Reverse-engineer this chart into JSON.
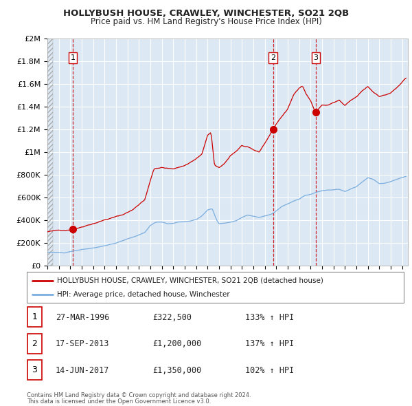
{
  "title": "HOLLYBUSH HOUSE, CRAWLEY, WINCHESTER, SO21 2QB",
  "subtitle": "Price paid vs. HM Land Registry's House Price Index (HPI)",
  "legend_red": "HOLLYBUSH HOUSE, CRAWLEY, WINCHESTER, SO21 2QB (detached house)",
  "legend_blue": "HPI: Average price, detached house, Winchester",
  "footer1": "Contains HM Land Registry data © Crown copyright and database right 2024.",
  "footer2": "This data is licensed under the Open Government Licence v3.0.",
  "sales": [
    {
      "label": "1",
      "date": "27-MAR-1996",
      "price": "£322,500",
      "hpi_pct": "133% ↑ HPI"
    },
    {
      "label": "2",
      "date": "17-SEP-2013",
      "price": "£1,200,000",
      "hpi_pct": "137% ↑ HPI"
    },
    {
      "label": "3",
      "date": "14-JUN-2017",
      "price": "£1,350,000",
      "hpi_pct": "102% ↑ HPI"
    }
  ],
  "sale_dates_decimal": [
    1996.23,
    2013.71,
    2017.45
  ],
  "sale_prices": [
    322500,
    1200000,
    1350000
  ],
  "red_color": "#cc0000",
  "blue_color": "#7aadde",
  "background_color": "#dce9f5",
  "grid_color": "#ffffff",
  "ylim": [
    0,
    2000000
  ],
  "xlim_start": 1994.0,
  "xlim_end": 2025.5,
  "yticks": [
    0,
    200000,
    400000,
    600000,
    800000,
    1000000,
    1200000,
    1400000,
    1600000,
    1800000,
    2000000
  ],
  "ytick_labels": [
    "£0",
    "£200K",
    "£400K",
    "£600K",
    "£800K",
    "£1M",
    "£1.2M",
    "£1.4M",
    "£1.6M",
    "£1.8M",
    "£2M"
  ],
  "xtick_years": [
    1994,
    1995,
    1996,
    1997,
    1998,
    1999,
    2000,
    2001,
    2002,
    2003,
    2004,
    2005,
    2006,
    2007,
    2008,
    2009,
    2010,
    2011,
    2012,
    2013,
    2014,
    2015,
    2016,
    2017,
    2018,
    2019,
    2020,
    2021,
    2022,
    2023,
    2024,
    2025
  ],
  "red_anchors": [
    [
      1994.0,
      300000
    ],
    [
      1995.0,
      310000
    ],
    [
      1996.23,
      322500
    ],
    [
      1997.5,
      370000
    ],
    [
      1999.0,
      420000
    ],
    [
      2000.5,
      460000
    ],
    [
      2001.5,
      510000
    ],
    [
      2002.5,
      600000
    ],
    [
      2003.3,
      870000
    ],
    [
      2004.0,
      880000
    ],
    [
      2004.5,
      870000
    ],
    [
      2005.0,
      870000
    ],
    [
      2006.0,
      900000
    ],
    [
      2007.0,
      960000
    ],
    [
      2007.5,
      1000000
    ],
    [
      2008.0,
      1160000
    ],
    [
      2008.3,
      1190000
    ],
    [
      2008.6,
      900000
    ],
    [
      2009.0,
      870000
    ],
    [
      2009.5,
      910000
    ],
    [
      2010.0,
      980000
    ],
    [
      2010.5,
      1020000
    ],
    [
      2011.0,
      1070000
    ],
    [
      2011.5,
      1050000
    ],
    [
      2012.0,
      1020000
    ],
    [
      2012.5,
      1000000
    ],
    [
      2013.0,
      1080000
    ],
    [
      2013.71,
      1200000
    ],
    [
      2014.0,
      1250000
    ],
    [
      2014.5,
      1320000
    ],
    [
      2015.0,
      1380000
    ],
    [
      2015.5,
      1500000
    ],
    [
      2016.0,
      1570000
    ],
    [
      2016.3,
      1590000
    ],
    [
      2016.6,
      1520000
    ],
    [
      2017.0,
      1460000
    ],
    [
      2017.45,
      1350000
    ],
    [
      2017.8,
      1400000
    ],
    [
      2018.0,
      1420000
    ],
    [
      2018.5,
      1420000
    ],
    [
      2019.0,
      1440000
    ],
    [
      2019.5,
      1460000
    ],
    [
      2020.0,
      1410000
    ],
    [
      2020.5,
      1450000
    ],
    [
      2021.0,
      1480000
    ],
    [
      2021.5,
      1530000
    ],
    [
      2022.0,
      1570000
    ],
    [
      2022.5,
      1520000
    ],
    [
      2023.0,
      1490000
    ],
    [
      2023.5,
      1500000
    ],
    [
      2024.0,
      1520000
    ],
    [
      2024.5,
      1560000
    ],
    [
      2025.3,
      1640000
    ]
  ],
  "blue_anchors": [
    [
      1994.0,
      120000
    ],
    [
      1995.0,
      120000
    ],
    [
      1995.5,
      115000
    ],
    [
      1996.0,
      130000
    ],
    [
      1997.0,
      150000
    ],
    [
      1998.0,
      165000
    ],
    [
      1999.0,
      185000
    ],
    [
      2000.0,
      205000
    ],
    [
      2001.0,
      240000
    ],
    [
      2002.0,
      275000
    ],
    [
      2002.5,
      295000
    ],
    [
      2003.0,
      360000
    ],
    [
      2003.5,
      390000
    ],
    [
      2004.0,
      390000
    ],
    [
      2004.5,
      375000
    ],
    [
      2005.0,
      380000
    ],
    [
      2005.5,
      390000
    ],
    [
      2006.0,
      395000
    ],
    [
      2006.5,
      400000
    ],
    [
      2007.0,
      410000
    ],
    [
      2007.5,
      440000
    ],
    [
      2008.0,
      490000
    ],
    [
      2008.4,
      500000
    ],
    [
      2008.8,
      400000
    ],
    [
      2009.0,
      370000
    ],
    [
      2009.5,
      375000
    ],
    [
      2010.0,
      385000
    ],
    [
      2010.5,
      400000
    ],
    [
      2011.0,
      430000
    ],
    [
      2011.5,
      450000
    ],
    [
      2012.0,
      440000
    ],
    [
      2012.5,
      430000
    ],
    [
      2013.0,
      445000
    ],
    [
      2013.5,
      455000
    ],
    [
      2013.71,
      465000
    ],
    [
      2014.0,
      490000
    ],
    [
      2014.5,
      530000
    ],
    [
      2015.0,
      555000
    ],
    [
      2015.5,
      580000
    ],
    [
      2016.0,
      595000
    ],
    [
      2016.5,
      630000
    ],
    [
      2017.0,
      640000
    ],
    [
      2017.45,
      660000
    ],
    [
      2017.8,
      670000
    ],
    [
      2018.0,
      675000
    ],
    [
      2018.5,
      680000
    ],
    [
      2019.0,
      680000
    ],
    [
      2019.5,
      685000
    ],
    [
      2020.0,
      665000
    ],
    [
      2020.5,
      690000
    ],
    [
      2021.0,
      710000
    ],
    [
      2021.5,
      750000
    ],
    [
      2022.0,
      790000
    ],
    [
      2022.5,
      775000
    ],
    [
      2023.0,
      740000
    ],
    [
      2023.5,
      745000
    ],
    [
      2024.0,
      755000
    ],
    [
      2024.5,
      775000
    ],
    [
      2025.3,
      800000
    ]
  ]
}
